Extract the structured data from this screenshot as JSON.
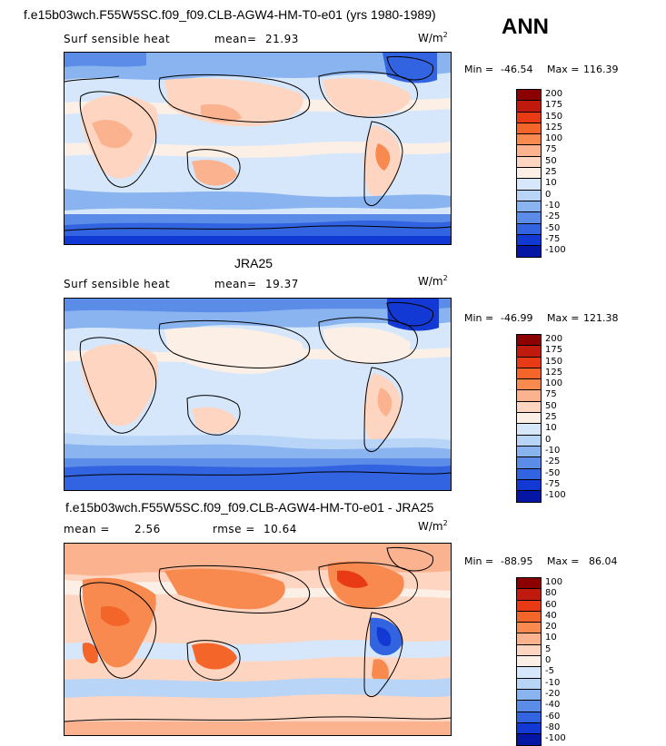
{
  "header": {
    "case_title": "f.e15b03wch.F55W5SC.f09_f09.CLB-AGW4-HM-T0-e01 (yrs 1980-1989)",
    "season": "ANN"
  },
  "panels": [
    {
      "variable": "Surf sensible heat",
      "mean_label": "mean=",
      "mean_value": "21.93",
      "units": "W/m",
      "units_exp": "2",
      "min_label": "Min =",
      "min_value": "-46.54",
      "max_label": "Max =",
      "max_value": "116.39",
      "colorbar": {
        "colors": [
          "#8b0000",
          "#c0190d",
          "#e83a15",
          "#f4652a",
          "#f88a4f",
          "#fbb28e",
          "#fdd5c0",
          "#fcefe6",
          "#d7e7fb",
          "#b8d4f7",
          "#8ab4f0",
          "#5b8de8",
          "#3264e2",
          "#1339d4",
          "#0616a4"
        ],
        "ticks": [
          "200",
          "175",
          "150",
          "125",
          "100",
          "75",
          "50",
          "25",
          "10",
          "0",
          "-10",
          "-25",
          "-50",
          "-75",
          "-100"
        ]
      }
    },
    {
      "title": "JRA25",
      "variable": "Surf sensible heat",
      "mean_label": "mean=",
      "mean_value": "19.37",
      "units": "W/m",
      "units_exp": "2",
      "min_label": "Min =",
      "min_value": "-46.99",
      "max_label": "Max =",
      "max_value": "121.38",
      "colorbar": {
        "colors": [
          "#8b0000",
          "#c0190d",
          "#e83a15",
          "#f4652a",
          "#f88a4f",
          "#fbb28e",
          "#fdd5c0",
          "#fcefe6",
          "#d7e7fb",
          "#b8d4f7",
          "#8ab4f0",
          "#5b8de8",
          "#3264e2",
          "#1339d4",
          "#0616a4"
        ],
        "ticks": [
          "200",
          "175",
          "150",
          "125",
          "100",
          "75",
          "50",
          "25",
          "10",
          "0",
          "-10",
          "-25",
          "-50",
          "-75",
          "-100"
        ]
      }
    },
    {
      "title": "f.e15b03wch.F55W5SC.f09_f09.CLB-AGW4-HM-T0-e01 - JRA25",
      "mean_label": "mean =",
      "mean_value": "2.56",
      "rmse_label": "rmse =",
      "rmse_value": "10.64",
      "units": "W/m",
      "units_exp": "2",
      "min_label": "Min =",
      "min_value": "-88.95",
      "max_label": "Max =",
      "max_value": "86.04",
      "colorbar": {
        "colors": [
          "#8b0000",
          "#c0190d",
          "#e83a15",
          "#f4652a",
          "#f88a4f",
          "#fbb28e",
          "#fdd5c0",
          "#fcefe6",
          "#d7e7fb",
          "#b8d4f7",
          "#8ab4f0",
          "#5b8de8",
          "#3264e2",
          "#1339d4",
          "#0616a4"
        ],
        "ticks": [
          "100",
          "80",
          "60",
          "40",
          "20",
          "10",
          "5",
          "0",
          "-5",
          "-10",
          "-20",
          "-40",
          "-60",
          "-80",
          "-100"
        ]
      }
    }
  ]
}
